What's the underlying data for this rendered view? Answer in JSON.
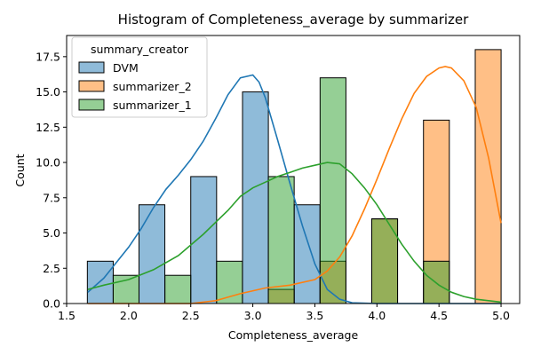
{
  "chart_data": {
    "type": "bar",
    "title": "Histogram of Completeness_average by summarizer",
    "xlabel": "Completeness_average",
    "ylabel": "Count",
    "xlim": [
      1.5,
      5.15
    ],
    "ylim": [
      0,
      19
    ],
    "xticks": [
      "1.5",
      "2.0",
      "2.5",
      "3.0",
      "3.5",
      "4.0",
      "4.5",
      "5.0"
    ],
    "yticks": [
      "0.0",
      "2.5",
      "5.0",
      "7.5",
      "10.0",
      "12.5",
      "15.0",
      "17.5"
    ],
    "legend": {
      "title": "summary_creator",
      "placement": "upper-left"
    },
    "bin_width": 0.2083,
    "series": [
      {
        "name": "DVM",
        "color": "#1f77b4",
        "bars": [
          {
            "x": 1.667,
            "count": 3
          },
          {
            "x": 2.083,
            "count": 7
          },
          {
            "x": 2.5,
            "count": 9
          },
          {
            "x": 2.917,
            "count": 15
          },
          {
            "x": 3.333,
            "count": 7
          }
        ],
        "kde": [
          [
            1.67,
            0.8
          ],
          [
            1.8,
            1.8
          ],
          [
            1.9,
            2.9
          ],
          [
            2.0,
            4.0
          ],
          [
            2.1,
            5.3
          ],
          [
            2.2,
            6.8
          ],
          [
            2.3,
            8.1
          ],
          [
            2.4,
            9.1
          ],
          [
            2.5,
            10.2
          ],
          [
            2.6,
            11.5
          ],
          [
            2.7,
            13.1
          ],
          [
            2.8,
            14.8
          ],
          [
            2.9,
            16.0
          ],
          [
            3.0,
            16.2
          ],
          [
            3.05,
            15.7
          ],
          [
            3.1,
            14.6
          ],
          [
            3.2,
            11.6
          ],
          [
            3.3,
            8.5
          ],
          [
            3.4,
            5.5
          ],
          [
            3.5,
            2.8
          ],
          [
            3.6,
            1.0
          ],
          [
            3.7,
            0.3
          ],
          [
            3.8,
            0.05
          ],
          [
            4.0,
            0.0
          ],
          [
            5.0,
            0.0
          ]
        ]
      },
      {
        "name": "summarizer_2",
        "color": "#ff7f0e",
        "bars": [
          {
            "x": 3.125,
            "count": 1
          },
          {
            "x": 3.542,
            "count": 3
          },
          {
            "x": 3.958,
            "count": 6
          },
          {
            "x": 4.375,
            "count": 13
          },
          {
            "x": 4.792,
            "count": 18
          }
        ],
        "kde": [
          [
            1.67,
            0.0
          ],
          [
            2.5,
            0.0
          ],
          [
            2.7,
            0.2
          ],
          [
            2.9,
            0.7
          ],
          [
            3.1,
            1.1
          ],
          [
            3.3,
            1.3
          ],
          [
            3.5,
            1.7
          ],
          [
            3.6,
            2.3
          ],
          [
            3.7,
            3.3
          ],
          [
            3.8,
            4.8
          ],
          [
            3.9,
            6.7
          ],
          [
            4.0,
            8.8
          ],
          [
            4.1,
            11.0
          ],
          [
            4.2,
            13.1
          ],
          [
            4.3,
            14.9
          ],
          [
            4.4,
            16.1
          ],
          [
            4.5,
            16.7
          ],
          [
            4.55,
            16.8
          ],
          [
            4.6,
            16.7
          ],
          [
            4.7,
            15.8
          ],
          [
            4.8,
            13.9
          ],
          [
            4.9,
            10.3
          ],
          [
            5.0,
            5.7
          ]
        ]
      },
      {
        "name": "summarizer_1",
        "color": "#2ca02c",
        "bars": [
          {
            "x": 1.875,
            "count": 2
          },
          {
            "x": 2.292,
            "count": 2
          },
          {
            "x": 2.708,
            "count": 3
          },
          {
            "x": 3.125,
            "count": 9
          },
          {
            "x": 3.542,
            "count": 16
          },
          {
            "x": 3.958,
            "count": 6
          },
          {
            "x": 4.375,
            "count": 3
          }
        ],
        "kde": [
          [
            1.67,
            1.0
          ],
          [
            1.8,
            1.3
          ],
          [
            2.0,
            1.7
          ],
          [
            2.2,
            2.4
          ],
          [
            2.4,
            3.4
          ],
          [
            2.6,
            4.9
          ],
          [
            2.8,
            6.6
          ],
          [
            2.9,
            7.6
          ],
          [
            3.0,
            8.2
          ],
          [
            3.1,
            8.6
          ],
          [
            3.2,
            9.0
          ],
          [
            3.3,
            9.3
          ],
          [
            3.4,
            9.6
          ],
          [
            3.5,
            9.8
          ],
          [
            3.6,
            10.0
          ],
          [
            3.7,
            9.9
          ],
          [
            3.8,
            9.2
          ],
          [
            3.9,
            8.2
          ],
          [
            4.0,
            7.0
          ],
          [
            4.1,
            5.6
          ],
          [
            4.2,
            4.2
          ],
          [
            4.3,
            3.0
          ],
          [
            4.4,
            2.0
          ],
          [
            4.5,
            1.3
          ],
          [
            4.6,
            0.8
          ],
          [
            4.7,
            0.5
          ],
          [
            4.8,
            0.3
          ],
          [
            5.0,
            0.1
          ]
        ]
      }
    ]
  }
}
